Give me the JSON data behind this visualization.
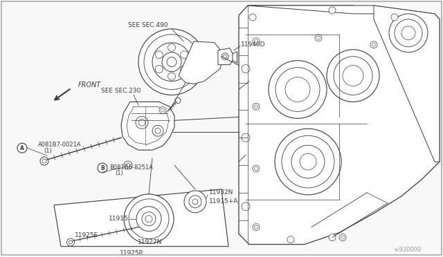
{
  "bg_color": "#f8f8f8",
  "line_color": "#3a3a3a",
  "text_color": "#3a3a3a",
  "fig_width": 6.4,
  "fig_height": 3.72,
  "dpi": 100,
  "watermark": "v-930000",
  "labels": {
    "see_sec_490": "SEE SEC.490",
    "see_sec_230": "SEE SEC.230",
    "part_11940": "11940D",
    "part_11932": "11932N",
    "part_11915a": "11915+A",
    "part_11915": "11915",
    "part_11927": "11927N",
    "part_11925e": "11925E",
    "part_11925p": "11925P",
    "bolt_a": "A081B7-0021A",
    "bolt_a2": "(1)",
    "bolt_b": "B081B6-8251A",
    "bolt_b2": "(1)",
    "front": "FRONT"
  }
}
